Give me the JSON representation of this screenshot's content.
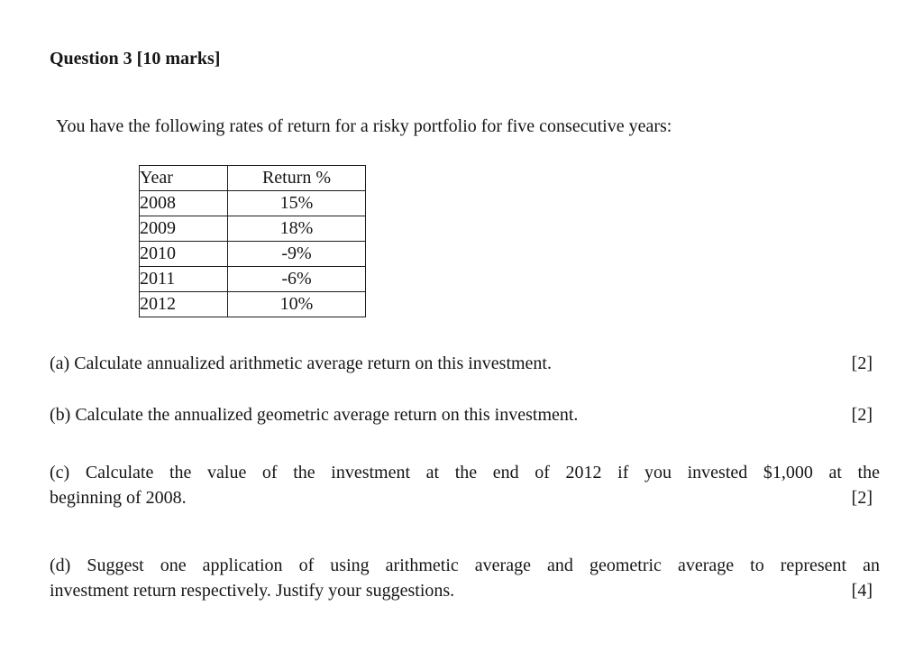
{
  "colors": {
    "background": "#ffffff",
    "text": "#161616",
    "table_border": "#1d1d1d"
  },
  "header": {
    "title": "Question 3 [10 marks]"
  },
  "intro": {
    "text": "You have the following rates of return for a risky portfolio for five consecutive years:"
  },
  "table": {
    "headers": [
      "Year",
      "Return %"
    ],
    "rows": [
      [
        "2008",
        "15%"
      ],
      [
        "2009",
        "18%"
      ],
      [
        "2010",
        "-9%"
      ],
      [
        "2011",
        "-6%"
      ],
      [
        "2012",
        "10%"
      ]
    ]
  },
  "questions": [
    {
      "id": "a",
      "text": "(a) Calculate annualized arithmetic average return on this investment.",
      "mark": "[2]"
    },
    {
      "id": "b",
      "text": "(b) Calculate the annualized geometric average return on this investment.",
      "mark": "[2]"
    },
    {
      "id": "c",
      "line1": "(c) Calculate the value of the investment at the end of 2012 if you invested $1,000 at the",
      "line2": "beginning of 2008.",
      "mark": "[2]"
    },
    {
      "id": "d",
      "line1": "(d) Suggest one application of using arithmetic average and geometric average to represent an",
      "line2": "investment return respectively. Justify your suggestions.",
      "mark": "[4]"
    }
  ]
}
